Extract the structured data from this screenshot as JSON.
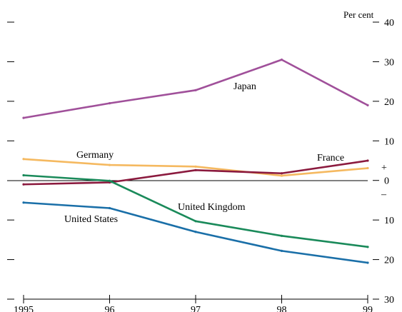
{
  "chart_data": {
    "type": "line",
    "unit_label": "Per cent",
    "x": [
      "1995",
      "96",
      "97",
      "98",
      "99"
    ],
    "y_ticks": [
      {
        "value": 40,
        "label": "40"
      },
      {
        "value": 30,
        "label": "30"
      },
      {
        "value": 20,
        "label": "20"
      },
      {
        "value": 10,
        "label": "10"
      },
      {
        "value": 0,
        "label": "0"
      },
      {
        "value": -10,
        "label": "10"
      },
      {
        "value": -20,
        "label": "20"
      },
      {
        "value": -30,
        "label": "30"
      }
    ],
    "ylim": [
      -30,
      40
    ],
    "sign_labels": {
      "plus": "+",
      "minus": "–"
    },
    "grid": false,
    "zero_line": true,
    "series": [
      {
        "name": "Japan",
        "color": "#a0509a",
        "values": [
          15.8,
          19.5,
          22.8,
          30.5,
          19.0
        ]
      },
      {
        "name": "Germany",
        "color": "#f5b960",
        "values": [
          5.4,
          3.9,
          3.5,
          1.2,
          3.1
        ]
      },
      {
        "name": "France",
        "color": "#8b1a3e",
        "values": [
          -1.0,
          -0.5,
          2.6,
          1.8,
          5.0
        ]
      },
      {
        "name": "United Kingdom",
        "color": "#1a8a5a",
        "values": [
          1.3,
          -0.1,
          -10.3,
          -14.0,
          -16.8
        ]
      },
      {
        "name": "United States",
        "color": "#1a6fa8",
        "values": [
          -5.6,
          -7.0,
          -13.0,
          -17.8,
          -20.8
        ]
      }
    ]
  }
}
